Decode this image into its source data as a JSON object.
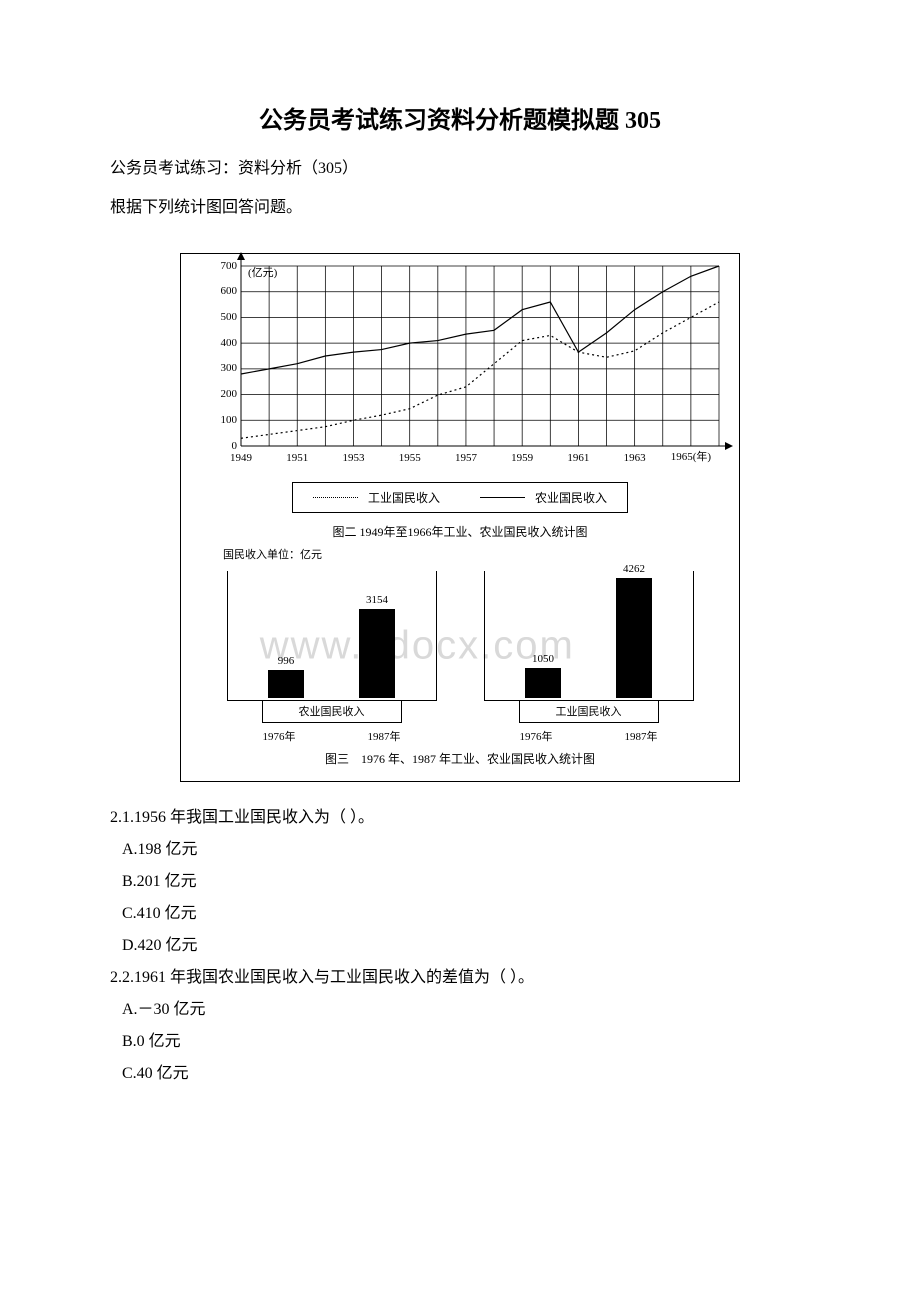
{
  "title": "公务员考试练习资料分析题模拟题 305",
  "subtitle": "公务员考试练习：资料分析（305）",
  "instruction": "根据下列统计图回答问题。",
  "line_chart": {
    "type": "line",
    "y_unit": "(亿元)",
    "ylim": [
      0,
      700
    ],
    "ytick_step": 100,
    "y_ticks": [
      0,
      100,
      200,
      300,
      400,
      500,
      600,
      700
    ],
    "x_years": [
      1949,
      1951,
      1953,
      1955,
      1957,
      1959,
      1961,
      1963,
      1965
    ],
    "x_unit_suffix": "(年)",
    "grid_color": "#000000",
    "background_color": "#ffffff",
    "series": [
      {
        "name": "工业国民收入",
        "style": "dotted",
        "color": "#000000",
        "points": [
          {
            "x": 1949,
            "y": 30
          },
          {
            "x": 1950,
            "y": 45
          },
          {
            "x": 1951,
            "y": 60
          },
          {
            "x": 1952,
            "y": 75
          },
          {
            "x": 1953,
            "y": 100
          },
          {
            "x": 1954,
            "y": 120
          },
          {
            "x": 1955,
            "y": 145
          },
          {
            "x": 1956,
            "y": 198
          },
          {
            "x": 1957,
            "y": 230
          },
          {
            "x": 1958,
            "y": 320
          },
          {
            "x": 1959,
            "y": 410
          },
          {
            "x": 1960,
            "y": 430
          },
          {
            "x": 1961,
            "y": 365
          },
          {
            "x": 1962,
            "y": 345
          },
          {
            "x": 1963,
            "y": 370
          },
          {
            "x": 1964,
            "y": 440
          },
          {
            "x": 1965,
            "y": 500
          },
          {
            "x": 1966,
            "y": 560
          }
        ]
      },
      {
        "name": "农业国民收入",
        "style": "solid",
        "color": "#000000",
        "points": [
          {
            "x": 1949,
            "y": 280
          },
          {
            "x": 1950,
            "y": 300
          },
          {
            "x": 1951,
            "y": 320
          },
          {
            "x": 1952,
            "y": 350
          },
          {
            "x": 1953,
            "y": 365
          },
          {
            "x": 1954,
            "y": 375
          },
          {
            "x": 1955,
            "y": 400
          },
          {
            "x": 1956,
            "y": 410
          },
          {
            "x": 1957,
            "y": 435
          },
          {
            "x": 1958,
            "y": 450
          },
          {
            "x": 1959,
            "y": 530
          },
          {
            "x": 1960,
            "y": 560
          },
          {
            "x": 1961,
            "y": 365
          },
          {
            "x": 1962,
            "y": 440
          },
          {
            "x": 1963,
            "y": 530
          },
          {
            "x": 1964,
            "y": 600
          },
          {
            "x": 1965,
            "y": 660
          },
          {
            "x": 1966,
            "y": 700
          }
        ]
      }
    ],
    "legend": [
      {
        "style": "dotted",
        "label": "工业国民收入"
      },
      {
        "style": "solid",
        "label": "农业国民收入"
      }
    ],
    "caption": "图二 1949年至1966年工业、农业国民收入统计图"
  },
  "bar_chart": {
    "type": "bar",
    "unit_label": "国民收入单位：亿元",
    "max_value": 4262,
    "bar_color": "#000000",
    "groups": [
      {
        "title": "农业国民收入",
        "bars": [
          {
            "label": "1976年",
            "value": 996,
            "value_text": "996"
          },
          {
            "label": "1987年",
            "value": 3154,
            "value_text": "3154"
          }
        ]
      },
      {
        "title": "工业国民收入",
        "bars": [
          {
            "label": "1976年",
            "value": 1050,
            "value_text": "1050"
          },
          {
            "label": "1987年",
            "value": 4262,
            "value_text": "4262"
          }
        ]
      }
    ],
    "caption": "图三　1976 年、1987 年工业、农业国民收入统计图",
    "watermark": "www.bdocx.com"
  },
  "questions": [
    {
      "q": "2.1.1956 年我国工业国民收入为（ ）。",
      "opts": [
        "A.198 亿元",
        "B.201 亿元",
        "C.410 亿元",
        "D.420 亿元"
      ]
    },
    {
      "q": "2.2.1961 年我国农业国民收入与工业国民收入的差值为（ ）。",
      "opts": [
        "A.－30 亿元",
        "B.0 亿元",
        "C.40 亿元"
      ]
    }
  ]
}
